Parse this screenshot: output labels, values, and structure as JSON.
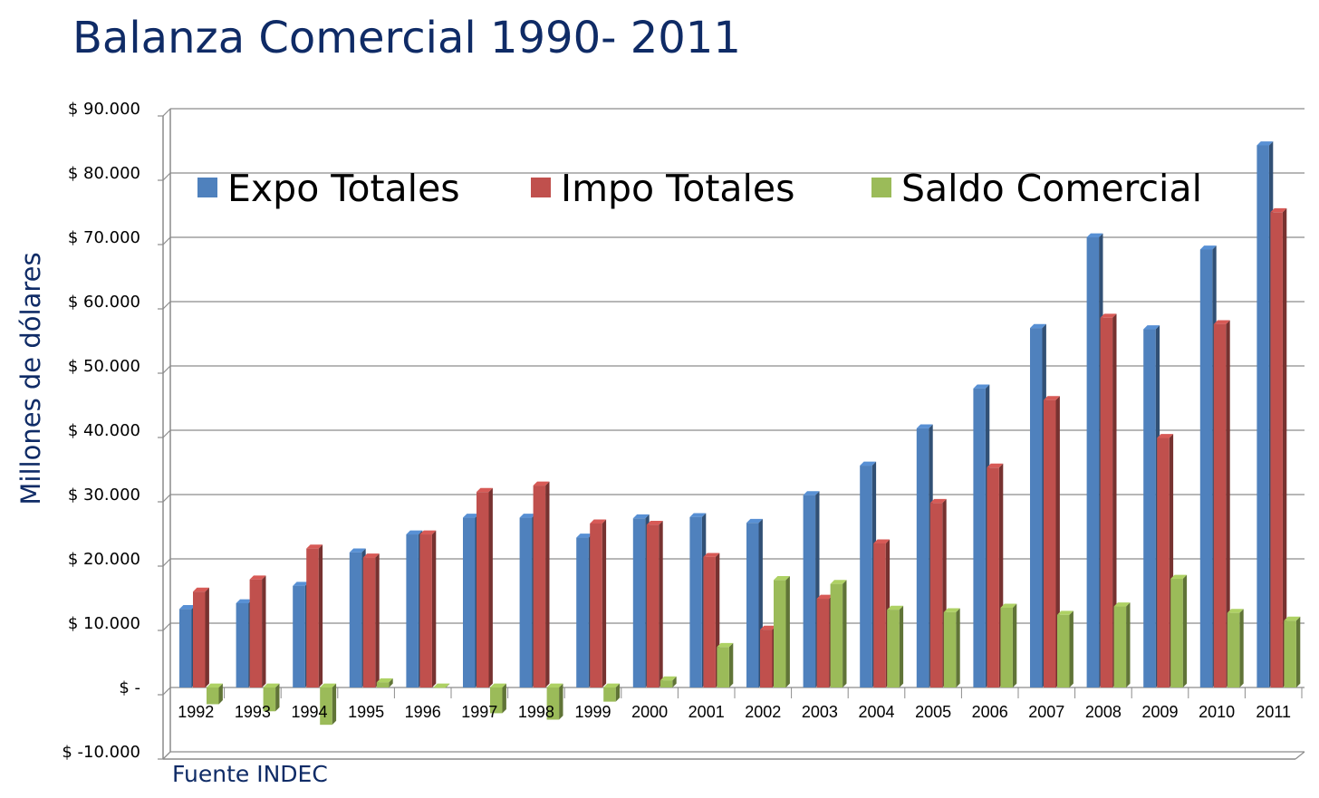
{
  "title": "Balanza Comercial 1990- 2011",
  "source": "Fuente INDEC",
  "colors": {
    "expo": "#4f81bd",
    "impo": "#c0504d",
    "saldo": "#9bbb59",
    "title": "#0f2b66",
    "grid": "#8c8c8c"
  },
  "chart_data": {
    "type": "bar",
    "title": "Balanza Comercial 1990- 2011",
    "xlabel": "",
    "ylabel": "Millones de dólares",
    "ylim": [
      -10000,
      90000
    ],
    "yticks": [
      90000,
      80000,
      70000,
      60000,
      50000,
      40000,
      30000,
      20000,
      10000,
      0,
      -10000
    ],
    "ytick_labels": [
      "$ 90.000",
      "$ 80.000",
      "$ 70.000",
      "$ 60.000",
      "$ 50.000",
      "$ 40.000",
      "$ 30.000",
      "$ 20.000",
      "$ 10.000",
      "$ -",
      "$ -10.000"
    ],
    "legend_position": "top",
    "categories": [
      "1992",
      "1993",
      "1994",
      "1995",
      "1996",
      "1997",
      "1998",
      "1999",
      "2000",
      "2001",
      "2002",
      "2003",
      "2004",
      "2005",
      "2006",
      "2007",
      "2008",
      "2009",
      "2010",
      "2011"
    ],
    "series": [
      {
        "name": "Expo Totales",
        "values": [
          12200,
          13100,
          15800,
          21000,
          23800,
          26400,
          26400,
          23300,
          26300,
          26500,
          25600,
          29900,
          34500,
          40300,
          46500,
          55900,
          70000,
          55700,
          68100,
          84300
        ]
      },
      {
        "name": "Impo Totales",
        "values": [
          14900,
          16800,
          21600,
          20200,
          23800,
          30400,
          31400,
          25500,
          25300,
          20300,
          9000,
          13800,
          22400,
          28700,
          34200,
          44700,
          57500,
          38800,
          56500,
          73900
        ]
      },
      {
        "name": "Saldo Comercial",
        "values": [
          -2600,
          -3700,
          -5800,
          800,
          0,
          -4000,
          -5000,
          -2200,
          1100,
          6300,
          16700,
          16100,
          12100,
          11700,
          12400,
          11300,
          12600,
          16900,
          11600,
          10400
        ]
      }
    ]
  }
}
